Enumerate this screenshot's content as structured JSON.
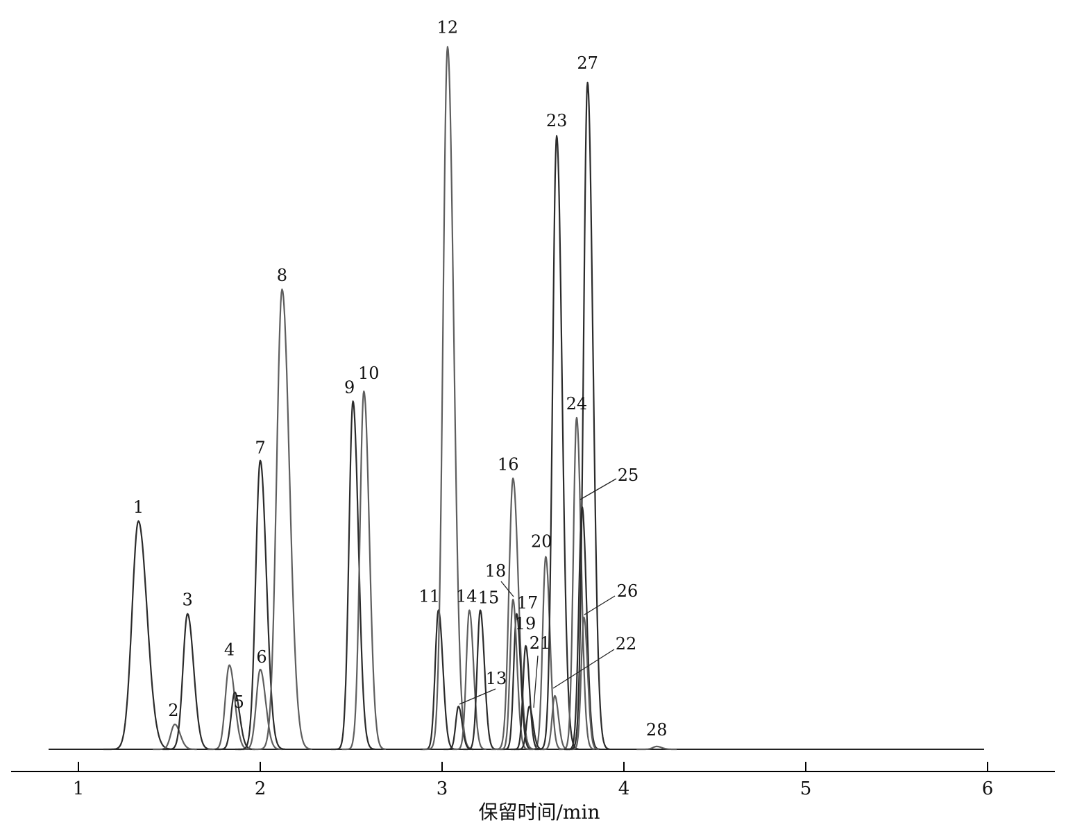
{
  "chart_data": {
    "type": "line",
    "title": "",
    "xlabel": "保留时间/min",
    "ylabel": "",
    "xlim": [
      0.62,
      6.38
    ],
    "ylim": [
      0,
      100
    ],
    "x_ticks": [
      1,
      2,
      3,
      4,
      5,
      6
    ],
    "x_tick_labels": [
      "1",
      "2",
      "3",
      "4",
      "5",
      "6"
    ],
    "grid": false,
    "colors": {
      "trace_dark": "#2b2b2b",
      "trace_gray": "#5e5e5e",
      "axis": "#000000"
    },
    "peaks": [
      {
        "label": "1",
        "rt": 1.33,
        "height": 32.0,
        "width": 0.035
      },
      {
        "label": "2",
        "rt": 1.53,
        "height": 3.5,
        "width": 0.022
      },
      {
        "label": "3",
        "rt": 1.6,
        "height": 19.0,
        "width": 0.025
      },
      {
        "label": "4",
        "rt": 1.83,
        "height": 11.8,
        "width": 0.022
      },
      {
        "label": "5",
        "rt": 1.86,
        "height": 8.0,
        "width": 0.02
      },
      {
        "label": "6",
        "rt": 2.0,
        "height": 11.2,
        "width": 0.022
      },
      {
        "label": "7",
        "rt": 2.0,
        "height": 40.5,
        "width": 0.025
      },
      {
        "label": "8",
        "rt": 2.12,
        "height": 64.5,
        "width": 0.03
      },
      {
        "label": "9",
        "rt": 2.51,
        "height": 48.8,
        "width": 0.022
      },
      {
        "label": "10",
        "rt": 2.57,
        "height": 50.2,
        "width": 0.022
      },
      {
        "label": "11",
        "rt": 2.98,
        "height": 19.5,
        "width": 0.018
      },
      {
        "label": "12",
        "rt": 3.03,
        "height": 98.5,
        "width": 0.025
      },
      {
        "label": "13",
        "rt": 3.09,
        "height": 6.0,
        "width": 0.015
      },
      {
        "label": "14",
        "rt": 3.15,
        "height": 19.5,
        "width": 0.017
      },
      {
        "label": "15",
        "rt": 3.21,
        "height": 19.5,
        "width": 0.017
      },
      {
        "label": "16",
        "rt": 3.39,
        "height": 38.0,
        "width": 0.022
      },
      {
        "label": "17",
        "rt": 3.41,
        "height": 19.0,
        "width": 0.016
      },
      {
        "label": "18",
        "rt": 3.39,
        "height": 21.0,
        "width": 0.016
      },
      {
        "label": "19",
        "rt": 3.46,
        "height": 14.5,
        "width": 0.015
      },
      {
        "label": "20",
        "rt": 3.57,
        "height": 27.0,
        "width": 0.017
      },
      {
        "label": "21",
        "rt": 3.48,
        "height": 6.0,
        "width": 0.015
      },
      {
        "label": "22",
        "rt": 3.62,
        "height": 7.5,
        "width": 0.015
      },
      {
        "label": "23",
        "rt": 3.63,
        "height": 86.0,
        "width": 0.022
      },
      {
        "label": "24",
        "rt": 3.74,
        "height": 46.5,
        "width": 0.018
      },
      {
        "label": "25",
        "rt": 3.77,
        "height": 34.0,
        "width": 0.018
      },
      {
        "label": "26",
        "rt": 3.78,
        "height": 18.5,
        "width": 0.015
      },
      {
        "label": "27",
        "rt": 3.8,
        "height": 93.5,
        "width": 0.022
      },
      {
        "label": "28",
        "rt": 4.18,
        "height": 0.4,
        "width": 0.02
      }
    ]
  }
}
